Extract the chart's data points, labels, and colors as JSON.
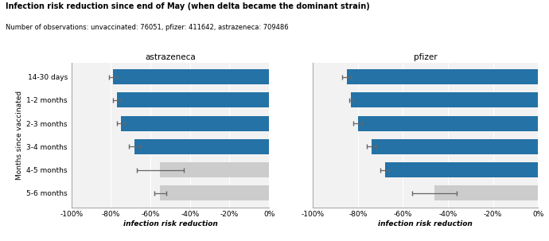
{
  "title": "Infection risk reduction since end of May (when delta became the dominant strain)",
  "subtitle": "Number of observations: unvaccinated: 76051, pfizer: 411642, astrazeneca: 709486",
  "categories": [
    "14-30 days",
    "1-2 months",
    "2-3 months",
    "3-4 months",
    "4-5 months",
    "5-6 months"
  ],
  "astrazeneca": {
    "label": "astrazeneca",
    "values": [
      -79,
      -77,
      -75,
      -68,
      -55,
      -55
    ],
    "ci_low": [
      -81,
      -79,
      -77,
      -71,
      -67,
      -58
    ],
    "ci_high": [
      -77,
      -75,
      -73,
      -65,
      -43,
      -52
    ],
    "colors": [
      "#2472a6",
      "#2472a6",
      "#2472a6",
      "#2472a6",
      "#cccccc",
      "#cccccc"
    ]
  },
  "pfizer": {
    "label": "pfizer",
    "values": [
      -85,
      -83,
      -80,
      -74,
      -68,
      -46
    ],
    "ci_low": [
      -87,
      -84,
      -82,
      -76,
      -70,
      -56
    ],
    "ci_high": [
      -83,
      -82,
      -78,
      -72,
      -66,
      -36
    ],
    "colors": [
      "#2472a6",
      "#2472a6",
      "#2472a6",
      "#2472a6",
      "#2472a6",
      "#cccccc"
    ]
  },
  "xlim": [
    -100,
    0
  ],
  "xticks": [
    -100,
    -80,
    -60,
    -40,
    -20,
    0
  ],
  "xticklabels": [
    "-100%",
    "-80%",
    "-60%",
    "-40%",
    "-20%",
    "0%"
  ],
  "xlabel": "infection risk reduction",
  "ylabel": "Months since vaccinated",
  "bar_height": 0.65,
  "error_color": "#666666"
}
